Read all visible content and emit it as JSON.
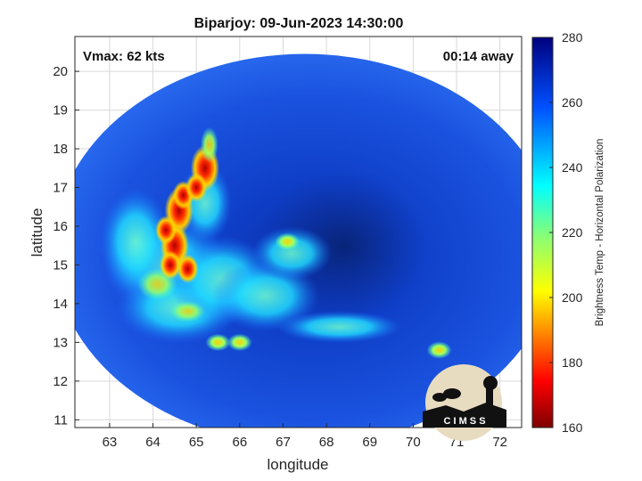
{
  "chart_data": {
    "type": "heatmap",
    "title": "Biparjoy: 09-Jun-2023 14:30:00",
    "xlabel": "longitude",
    "ylabel": "latitude",
    "xlim": [
      62.2,
      72.5
    ],
    "ylim": [
      10.8,
      20.9
    ],
    "xticks": [
      63,
      64,
      65,
      66,
      67,
      68,
      69,
      70,
      71,
      72
    ],
    "yticks": [
      11,
      12,
      13,
      14,
      15,
      16,
      17,
      18,
      19,
      20
    ],
    "grid": true,
    "annotations": {
      "vmax": "Vmax: 62 kts",
      "time_away": "00:14 away"
    },
    "colorbar": {
      "label": "Brightness Temp - Horizontal Polarization",
      "range": [
        160,
        280
      ],
      "ticks": [
        280,
        260,
        240,
        220,
        200,
        180,
        160
      ],
      "colormap": "jet"
    },
    "swath": {
      "center_lon": 67.5,
      "center_lat": 15.4,
      "radius_lon": 5.8,
      "radius_lat": 5.05,
      "background_tb": 262
    },
    "features": [
      {
        "lon": 64.5,
        "lat": 15.5,
        "tb": 182,
        "description": "convective band"
      },
      {
        "lon": 64.6,
        "lat": 16.4,
        "tb": 178
      },
      {
        "lon": 65.2,
        "lat": 17.5,
        "tb": 180
      },
      {
        "lon": 67.1,
        "lat": 15.6,
        "tb": 195
      },
      {
        "lon": 70.6,
        "lat": 12.8,
        "tb": 210
      },
      {
        "lon": 65.5,
        "lat": 13.0,
        "tb": 205
      },
      {
        "lon": 66.0,
        "lat": 13.0,
        "tb": 212
      }
    ],
    "logo_text": "C I M S S"
  }
}
